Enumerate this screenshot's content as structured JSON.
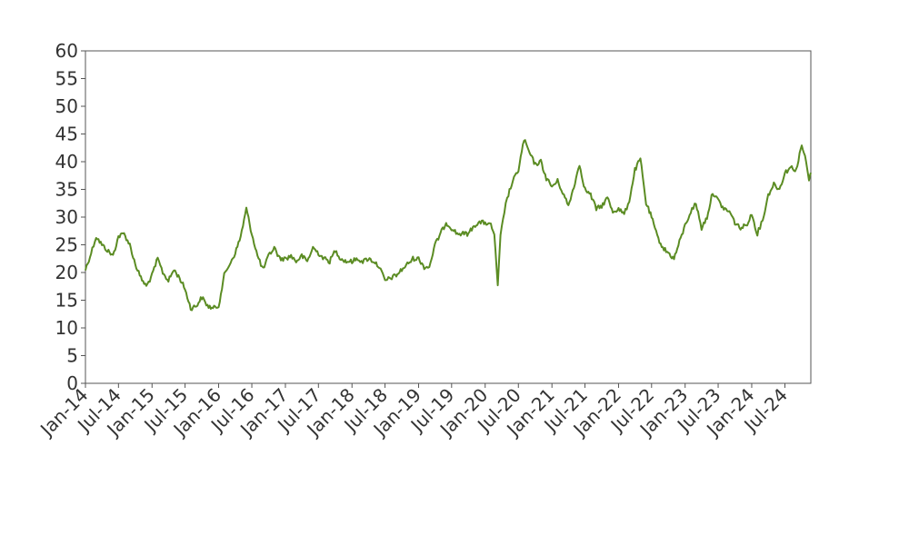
{
  "chart_data": {
    "type": "line",
    "title": "",
    "xlabel": "",
    "ylabel": "",
    "xlim": [
      "2014-01-01",
      "2024-11-20"
    ],
    "ylim": [
      0,
      60
    ],
    "grid": false,
    "legend": "none",
    "y_ticks": [
      "0",
      "5",
      "10",
      "15",
      "20",
      "25",
      "30",
      "35",
      "40",
      "45",
      "50",
      "55",
      "60"
    ],
    "x_ticks": [
      {
        "date": "2014-01-01",
        "label": "Jan-14"
      },
      {
        "date": "2014-07-01",
        "label": "Jul-14"
      },
      {
        "date": "2015-01-01",
        "label": "Jan-15"
      },
      {
        "date": "2015-07-01",
        "label": "Jul-15"
      },
      {
        "date": "2016-01-01",
        "label": "Jan-16"
      },
      {
        "date": "2016-07-01",
        "label": "Jul-16"
      },
      {
        "date": "2017-01-01",
        "label": "Jan-17"
      },
      {
        "date": "2017-07-01",
        "label": "Jul-17"
      },
      {
        "date": "2018-01-01",
        "label": "Jan-18"
      },
      {
        "date": "2018-07-01",
        "label": "Jul-18"
      },
      {
        "date": "2019-01-01",
        "label": "Jan-19"
      },
      {
        "date": "2019-07-01",
        "label": "Jul-19"
      },
      {
        "date": "2020-01-01",
        "label": "Jan-20"
      },
      {
        "date": "2020-07-01",
        "label": "Jul-20"
      },
      {
        "date": "2021-01-01",
        "label": "Jan-21"
      },
      {
        "date": "2021-07-01",
        "label": "Jul-21"
      },
      {
        "date": "2022-01-01",
        "label": "Jan-22"
      },
      {
        "date": "2022-07-01",
        "label": "Jul-22"
      },
      {
        "date": "2023-01-01",
        "label": "Jan-23"
      },
      {
        "date": "2023-07-01",
        "label": "Jul-23"
      },
      {
        "date": "2024-01-01",
        "label": "Jan-24"
      },
      {
        "date": "2024-07-01",
        "label": "Jul-24"
      }
    ],
    "series": [
      {
        "color": "#5b8c23",
        "points": [
          [
            "2014-01-01",
            20.5
          ],
          [
            "2014-02-01",
            23.5
          ],
          [
            "2014-03-01",
            26.5
          ],
          [
            "2014-04-01",
            25.0
          ],
          [
            "2014-05-01",
            24.0
          ],
          [
            "2014-06-01",
            23.0
          ],
          [
            "2014-07-01",
            26.5
          ],
          [
            "2014-08-01",
            27.0
          ],
          [
            "2014-09-01",
            25.0
          ],
          [
            "2014-10-01",
            21.5
          ],
          [
            "2014-11-01",
            19.0
          ],
          [
            "2014-12-01",
            17.5
          ],
          [
            "2015-01-01",
            19.5
          ],
          [
            "2015-02-01",
            22.5
          ],
          [
            "2015-03-01",
            20.0
          ],
          [
            "2015-04-01",
            18.5
          ],
          [
            "2015-05-01",
            20.5
          ],
          [
            "2015-06-01",
            19.0
          ],
          [
            "2015-07-01",
            17.0
          ],
          [
            "2015-08-01",
            13.5
          ],
          [
            "2015-09-01",
            14.0
          ],
          [
            "2015-10-01",
            15.5
          ],
          [
            "2015-11-01",
            14.0
          ],
          [
            "2015-12-01",
            13.5
          ],
          [
            "2016-01-01",
            14.0
          ],
          [
            "2016-02-01",
            19.5
          ],
          [
            "2016-03-01",
            21.5
          ],
          [
            "2016-04-01",
            23.5
          ],
          [
            "2016-05-01",
            26.5
          ],
          [
            "2016-06-01",
            31.5
          ],
          [
            "2016-07-01",
            27.0
          ],
          [
            "2016-08-01",
            23.0
          ],
          [
            "2016-09-01",
            20.5
          ],
          [
            "2016-10-01",
            23.0
          ],
          [
            "2016-11-01",
            24.5
          ],
          [
            "2016-12-01",
            22.5
          ],
          [
            "2017-01-01",
            22.5
          ],
          [
            "2017-02-01",
            23.0
          ],
          [
            "2017-03-01",
            22.0
          ],
          [
            "2017-04-01",
            23.0
          ],
          [
            "2017-05-01",
            22.0
          ],
          [
            "2017-06-01",
            24.5
          ],
          [
            "2017-07-01",
            23.5
          ],
          [
            "2017-08-01",
            22.5
          ],
          [
            "2017-09-01",
            22.0
          ],
          [
            "2017-10-01",
            24.0
          ],
          [
            "2017-11-01",
            22.5
          ],
          [
            "2017-12-01",
            22.0
          ],
          [
            "2018-01-01",
            22.0
          ],
          [
            "2018-02-01",
            22.5
          ],
          [
            "2018-03-01",
            22.0
          ],
          [
            "2018-04-01",
            22.5
          ],
          [
            "2018-05-01",
            22.0
          ],
          [
            "2018-06-01",
            21.0
          ],
          [
            "2018-07-01",
            18.5
          ],
          [
            "2018-08-01",
            19.0
          ],
          [
            "2018-09-01",
            19.5
          ],
          [
            "2018-10-01",
            20.5
          ],
          [
            "2018-11-01",
            21.5
          ],
          [
            "2018-12-01",
            22.5
          ],
          [
            "2019-01-01",
            22.5
          ],
          [
            "2019-02-01",
            21.0
          ],
          [
            "2019-03-01",
            21.0
          ],
          [
            "2019-04-01",
            25.0
          ],
          [
            "2019-05-01",
            27.0
          ],
          [
            "2019-06-01",
            29.0
          ],
          [
            "2019-07-01",
            28.0
          ],
          [
            "2019-08-01",
            27.0
          ],
          [
            "2019-09-01",
            27.0
          ],
          [
            "2019-10-01",
            27.0
          ],
          [
            "2019-11-01",
            28.5
          ],
          [
            "2019-12-01",
            29.0
          ],
          [
            "2020-01-01",
            29.0
          ],
          [
            "2020-02-01",
            28.5
          ],
          [
            "2020-02-20",
            27.0
          ],
          [
            "2020-03-10",
            17.5
          ],
          [
            "2020-03-25",
            26.5
          ],
          [
            "2020-04-15",
            31.0
          ],
          [
            "2020-05-01",
            33.5
          ],
          [
            "2020-06-01",
            36.5
          ],
          [
            "2020-07-01",
            38.5
          ],
          [
            "2020-08-01",
            44.0
          ],
          [
            "2020-09-01",
            41.5
          ],
          [
            "2020-10-01",
            39.5
          ],
          [
            "2020-11-01",
            40.0
          ],
          [
            "2020-12-01",
            37.0
          ],
          [
            "2021-01-01",
            35.5
          ],
          [
            "2021-02-01",
            36.5
          ],
          [
            "2021-03-01",
            34.5
          ],
          [
            "2021-04-01",
            32.0
          ],
          [
            "2021-05-01",
            35.5
          ],
          [
            "2021-06-01",
            39.5
          ],
          [
            "2021-07-01",
            35.0
          ],
          [
            "2021-08-01",
            34.0
          ],
          [
            "2021-09-01",
            31.5
          ],
          [
            "2021-10-01",
            32.0
          ],
          [
            "2021-11-01",
            33.5
          ],
          [
            "2021-12-01",
            31.0
          ],
          [
            "2022-01-01",
            31.5
          ],
          [
            "2022-02-01",
            30.5
          ],
          [
            "2022-03-01",
            33.0
          ],
          [
            "2022-04-01",
            38.5
          ],
          [
            "2022-05-01",
            40.5
          ],
          [
            "2022-06-01",
            32.5
          ],
          [
            "2022-07-01",
            30.0
          ],
          [
            "2022-08-01",
            26.5
          ],
          [
            "2022-09-01",
            24.5
          ],
          [
            "2022-10-01",
            23.5
          ],
          [
            "2022-11-01",
            22.5
          ],
          [
            "2022-12-01",
            25.5
          ],
          [
            "2023-01-01",
            28.5
          ],
          [
            "2023-02-01",
            31.0
          ],
          [
            "2023-03-01",
            32.5
          ],
          [
            "2023-04-01",
            28.0
          ],
          [
            "2023-05-01",
            30.0
          ],
          [
            "2023-06-01",
            34.5
          ],
          [
            "2023-07-01",
            33.0
          ],
          [
            "2023-08-01",
            31.5
          ],
          [
            "2023-09-01",
            31.0
          ],
          [
            "2023-10-01",
            29.0
          ],
          [
            "2023-11-01",
            28.0
          ],
          [
            "2023-12-01",
            28.5
          ],
          [
            "2024-01-01",
            30.5
          ],
          [
            "2024-02-01",
            27.0
          ],
          [
            "2024-03-01",
            29.5
          ],
          [
            "2024-04-01",
            34.0
          ],
          [
            "2024-05-01",
            36.0
          ],
          [
            "2024-06-01",
            35.0
          ],
          [
            "2024-07-01",
            38.0
          ],
          [
            "2024-08-01",
            39.0
          ],
          [
            "2024-09-01",
            38.5
          ],
          [
            "2024-10-01",
            43.0
          ],
          [
            "2024-10-25",
            40.0
          ],
          [
            "2024-11-10",
            36.5
          ],
          [
            "2024-11-20",
            38.0
          ]
        ]
      }
    ]
  }
}
